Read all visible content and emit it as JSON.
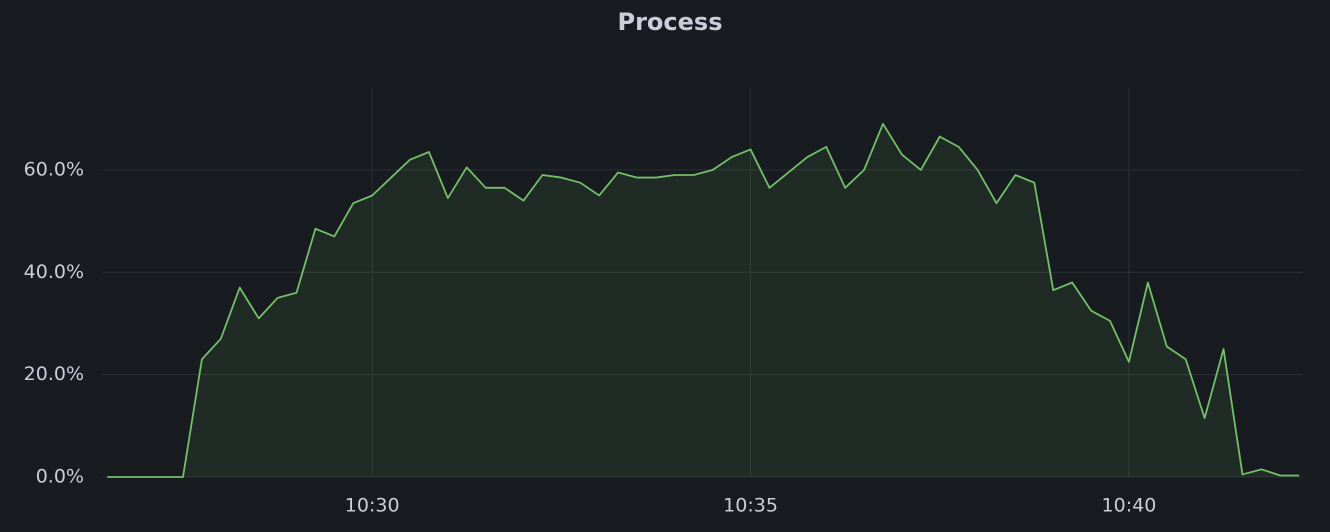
{
  "chart_data": {
    "type": "area",
    "title": "Process",
    "x": [
      26.5,
      26.75,
      27,
      27.25,
      27.5,
      27.75,
      28,
      28.25,
      28.5,
      28.75,
      29,
      29.25,
      29.5,
      29.75,
      30,
      30.25,
      30.5,
      30.75,
      31,
      31.25,
      31.5,
      31.75,
      32,
      32.25,
      32.5,
      32.75,
      33,
      33.25,
      33.5,
      33.75,
      34,
      34.25,
      34.5,
      34.75,
      35,
      35.25,
      35.5,
      35.75,
      36,
      36.25,
      36.5,
      36.75,
      37,
      37.25,
      37.5,
      37.75,
      38,
      38.25,
      38.5,
      38.75,
      39,
      39.25,
      39.5,
      39.75,
      40,
      40.25,
      40.5,
      40.75,
      41,
      41.25,
      41.5,
      41.75,
      42,
      42.25
    ],
    "series": [
      {
        "name": "Process",
        "color": "#73bf69",
        "values": [
          0,
          0,
          0,
          0,
          0,
          23,
          27,
          37,
          31,
          35,
          36,
          48.5,
          47,
          53.5,
          55,
          58.5,
          62,
          63.5,
          54.5,
          60.5,
          56.5,
          56.5,
          54,
          59,
          58.5,
          57.5,
          55,
          59.5,
          58.5,
          58.5,
          59,
          59,
          60,
          62.5,
          64,
          56.5,
          59.5,
          62.5,
          64.5,
          56.5,
          60,
          69,
          63,
          60,
          66.5,
          64.5,
          60,
          53.5,
          59,
          57.5,
          36.5,
          38,
          32.5,
          30.5,
          22.5,
          38,
          25.5,
          23,
          11.5,
          25,
          0.5,
          1.5,
          0.3,
          0.3
        ]
      }
    ],
    "xlim": [
      26.43,
      42.3
    ],
    "xticks": [
      {
        "value": 30,
        "label": "10:30"
      },
      {
        "value": 35,
        "label": "10:35"
      },
      {
        "value": 40,
        "label": "10:40"
      }
    ],
    "ylim": [
      0,
      76
    ],
    "yticks": [
      {
        "value": 0,
        "label": "0.0%"
      },
      {
        "value": 20,
        "label": "20.0%"
      },
      {
        "value": 40,
        "label": "40.0%"
      },
      {
        "value": 60,
        "label": "60.0%"
      }
    ],
    "grid": true
  }
}
